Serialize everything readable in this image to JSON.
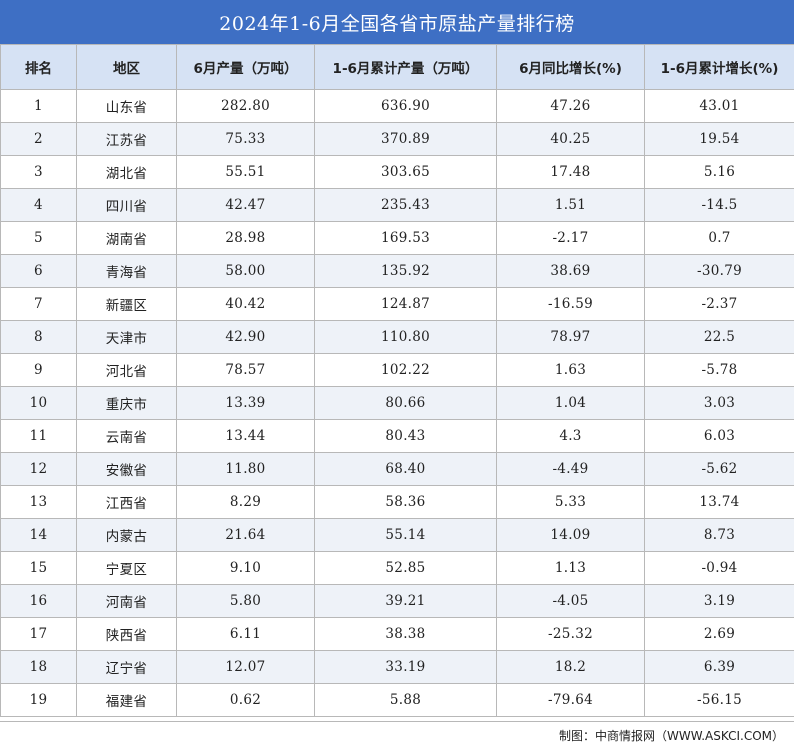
{
  "title": "2024年1-6月全国各省市原盐产量排行榜",
  "columns": [
    "排名",
    "地区",
    "6月产量（万吨）",
    "1-6月累计产量（万吨）",
    "6月同比增长(%)",
    "1-6月累计增长(%)"
  ],
  "rows": [
    [
      "1",
      "山东省",
      "282.80",
      "636.90",
      "47.26",
      "43.01"
    ],
    [
      "2",
      "江苏省",
      "75.33",
      "370.89",
      "40.25",
      "19.54"
    ],
    [
      "3",
      "湖北省",
      "55.51",
      "303.65",
      "17.48",
      "5.16"
    ],
    [
      "4",
      "四川省",
      "42.47",
      "235.43",
      "1.51",
      "-14.5"
    ],
    [
      "5",
      "湖南省",
      "28.98",
      "169.53",
      "-2.17",
      "0.7"
    ],
    [
      "6",
      "青海省",
      "58.00",
      "135.92",
      "38.69",
      "-30.79"
    ],
    [
      "7",
      "新疆区",
      "40.42",
      "124.87",
      "-16.59",
      "-2.37"
    ],
    [
      "8",
      "天津市",
      "42.90",
      "110.80",
      "78.97",
      "22.5"
    ],
    [
      "9",
      "河北省",
      "78.57",
      "102.22",
      "1.63",
      "-5.78"
    ],
    [
      "10",
      "重庆市",
      "13.39",
      "80.66",
      "1.04",
      "3.03"
    ],
    [
      "11",
      "云南省",
      "13.44",
      "80.43",
      "4.3",
      "6.03"
    ],
    [
      "12",
      "安徽省",
      "11.80",
      "68.40",
      "-4.49",
      "-5.62"
    ],
    [
      "13",
      "江西省",
      "8.29",
      "58.36",
      "5.33",
      "13.74"
    ],
    [
      "14",
      "内蒙古",
      "21.64",
      "55.14",
      "14.09",
      "8.73"
    ],
    [
      "15",
      "宁夏区",
      "9.10",
      "52.85",
      "1.13",
      "-0.94"
    ],
    [
      "16",
      "河南省",
      "5.80",
      "39.21",
      "-4.05",
      "3.19"
    ],
    [
      "17",
      "陕西省",
      "6.11",
      "38.38",
      "-25.32",
      "2.69"
    ],
    [
      "18",
      "辽宁省",
      "12.07",
      "33.19",
      "18.2",
      "6.39"
    ],
    [
      "19",
      "福建省",
      "0.62",
      "5.88",
      "-79.64",
      "-56.15"
    ]
  ],
  "footer": "制图：中商情报网（WWW.ASKCI.COM）",
  "colors": {
    "header_bar": "#3e6fc4",
    "column_header_bg": "#d6e2f4",
    "alt_row_bg": "#eef2f8"
  }
}
